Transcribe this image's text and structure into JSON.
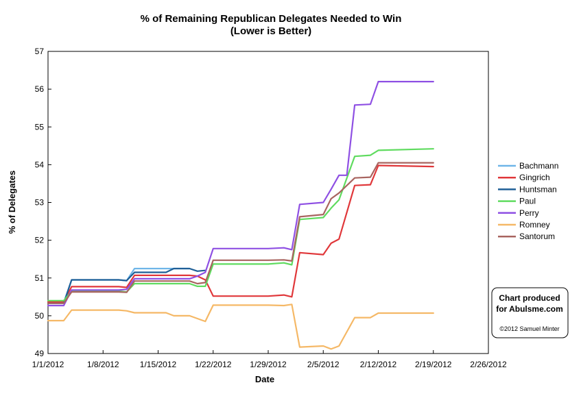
{
  "chart_data": {
    "type": "line",
    "title": "% of Remaining Republican Delegates Needed to Win",
    "subtitle": "(Lower is Better)",
    "xlabel": "Date",
    "ylabel": "% of Delegates",
    "xlim": [
      "1/1/2012",
      "2/26/2012"
    ],
    "ylim": [
      49,
      57
    ],
    "x_ticks": [
      "1/1/2012",
      "1/8/2012",
      "1/15/2012",
      "1/22/2012",
      "1/29/2012",
      "2/5/2012",
      "2/12/2012",
      "2/19/2012",
      "2/26/2012"
    ],
    "y_ticks": [
      49,
      50,
      51,
      52,
      53,
      54,
      55,
      56,
      57
    ],
    "grid": false,
    "legend_position": "right",
    "series": [
      {
        "name": "Bachmann",
        "color": "#6EB5E8",
        "points": [
          [
            "1/1/2012",
            50.35
          ],
          [
            "1/3/2012",
            50.35
          ],
          [
            "1/4/2012",
            50.95
          ],
          [
            "1/10/2012",
            50.95
          ],
          [
            "1/11/2012",
            50.93
          ],
          [
            "1/12/2012",
            51.25
          ],
          [
            "1/19/2012",
            51.25
          ]
        ]
      },
      {
        "name": "Gingrich",
        "color": "#E0373A",
        "points": [
          [
            "1/1/2012",
            50.37
          ],
          [
            "1/3/2012",
            50.37
          ],
          [
            "1/4/2012",
            50.77
          ],
          [
            "1/10/2012",
            50.77
          ],
          [
            "1/11/2012",
            50.75
          ],
          [
            "1/12/2012",
            51.07
          ],
          [
            "1/19/2012",
            51.07
          ],
          [
            "1/20/2012",
            51.05
          ],
          [
            "1/21/2012",
            50.95
          ],
          [
            "1/22/2012",
            50.52
          ],
          [
            "1/29/2012",
            50.52
          ],
          [
            "1/31/2012",
            50.55
          ],
          [
            "2/1/2012",
            50.5
          ],
          [
            "2/2/2012",
            51.67
          ],
          [
            "2/5/2012",
            51.62
          ],
          [
            "2/6/2012",
            51.92
          ],
          [
            "2/7/2012",
            52.03
          ],
          [
            "2/9/2012",
            53.45
          ],
          [
            "2/11/2012",
            53.47
          ],
          [
            "2/12/2012",
            53.98
          ],
          [
            "2/19/2012",
            53.95
          ]
        ]
      },
      {
        "name": "Huntsman",
        "color": "#1E5E96",
        "points": [
          [
            "1/1/2012",
            50.33
          ],
          [
            "1/3/2012",
            50.33
          ],
          [
            "1/4/2012",
            50.95
          ],
          [
            "1/10/2012",
            50.95
          ],
          [
            "1/11/2012",
            50.93
          ],
          [
            "1/12/2012",
            51.15
          ],
          [
            "1/16/2012",
            51.15
          ],
          [
            "1/17/2012",
            51.25
          ],
          [
            "1/19/2012",
            51.25
          ],
          [
            "1/20/2012",
            51.18
          ],
          [
            "1/21/2012",
            51.2
          ]
        ]
      },
      {
        "name": "Paul",
        "color": "#5FDB5F",
        "points": [
          [
            "1/1/2012",
            50.4
          ],
          [
            "1/3/2012",
            50.4
          ],
          [
            "1/4/2012",
            50.65
          ],
          [
            "1/10/2012",
            50.65
          ],
          [
            "1/11/2012",
            50.63
          ],
          [
            "1/12/2012",
            50.85
          ],
          [
            "1/19/2012",
            50.85
          ],
          [
            "1/20/2012",
            50.78
          ],
          [
            "1/21/2012",
            50.78
          ],
          [
            "1/22/2012",
            51.37
          ],
          [
            "1/29/2012",
            51.37
          ],
          [
            "1/31/2012",
            51.4
          ],
          [
            "2/1/2012",
            51.35
          ],
          [
            "2/2/2012",
            52.55
          ],
          [
            "2/5/2012",
            52.6
          ],
          [
            "2/6/2012",
            52.85
          ],
          [
            "2/7/2012",
            53.07
          ],
          [
            "2/9/2012",
            54.22
          ],
          [
            "2/11/2012",
            54.25
          ],
          [
            "2/12/2012",
            54.38
          ],
          [
            "2/19/2012",
            54.42
          ]
        ]
      },
      {
        "name": "Perry",
        "color": "#8E4FE3",
        "points": [
          [
            "1/1/2012",
            50.27
          ],
          [
            "1/3/2012",
            50.27
          ],
          [
            "1/4/2012",
            50.68
          ],
          [
            "1/10/2012",
            50.68
          ],
          [
            "1/11/2012",
            50.7
          ],
          [
            "1/12/2012",
            50.98
          ],
          [
            "1/19/2012",
            50.98
          ],
          [
            "1/20/2012",
            51.05
          ],
          [
            "1/21/2012",
            51.15
          ],
          [
            "1/22/2012",
            51.78
          ],
          [
            "1/29/2012",
            51.78
          ],
          [
            "1/31/2012",
            51.8
          ],
          [
            "2/1/2012",
            51.75
          ],
          [
            "2/2/2012",
            52.95
          ],
          [
            "2/5/2012",
            53.0
          ],
          [
            "2/6/2012",
            53.35
          ],
          [
            "2/7/2012",
            53.72
          ],
          [
            "2/8/2012",
            53.72
          ],
          [
            "2/9/2012",
            55.58
          ],
          [
            "2/11/2012",
            55.6
          ],
          [
            "2/12/2012",
            56.2
          ],
          [
            "2/19/2012",
            56.2
          ]
        ]
      },
      {
        "name": "Romney",
        "color": "#F5B866",
        "points": [
          [
            "1/1/2012",
            49.87
          ],
          [
            "1/3/2012",
            49.87
          ],
          [
            "1/4/2012",
            50.15
          ],
          [
            "1/10/2012",
            50.15
          ],
          [
            "1/11/2012",
            50.13
          ],
          [
            "1/12/2012",
            50.08
          ],
          [
            "1/16/2012",
            50.08
          ],
          [
            "1/17/2012",
            50.0
          ],
          [
            "1/19/2012",
            50.0
          ],
          [
            "1/21/2012",
            49.85
          ],
          [
            "1/22/2012",
            50.28
          ],
          [
            "1/29/2012",
            50.28
          ],
          [
            "1/31/2012",
            50.27
          ],
          [
            "2/1/2012",
            50.3
          ],
          [
            "2/2/2012",
            49.17
          ],
          [
            "2/5/2012",
            49.2
          ],
          [
            "2/6/2012",
            49.12
          ],
          [
            "2/7/2012",
            49.2
          ],
          [
            "2/9/2012",
            49.95
          ],
          [
            "2/11/2012",
            49.95
          ],
          [
            "2/12/2012",
            50.07
          ],
          [
            "2/19/2012",
            50.07
          ]
        ]
      },
      {
        "name": "Santorum",
        "color": "#A8645F",
        "points": [
          [
            "1/1/2012",
            50.33
          ],
          [
            "1/3/2012",
            50.33
          ],
          [
            "1/4/2012",
            50.63
          ],
          [
            "1/10/2012",
            50.63
          ],
          [
            "1/11/2012",
            50.62
          ],
          [
            "1/12/2012",
            50.92
          ],
          [
            "1/19/2012",
            50.92
          ],
          [
            "1/20/2012",
            50.85
          ],
          [
            "1/21/2012",
            50.88
          ],
          [
            "1/22/2012",
            51.47
          ],
          [
            "1/29/2012",
            51.47
          ],
          [
            "1/31/2012",
            51.48
          ],
          [
            "2/1/2012",
            51.45
          ],
          [
            "2/2/2012",
            52.62
          ],
          [
            "2/5/2012",
            52.68
          ],
          [
            "2/6/2012",
            53.1
          ],
          [
            "2/7/2012",
            53.25
          ],
          [
            "2/9/2012",
            53.65
          ],
          [
            "2/11/2012",
            53.67
          ],
          [
            "2/12/2012",
            54.05
          ],
          [
            "2/19/2012",
            54.05
          ]
        ]
      }
    ]
  },
  "credit": {
    "line1": "Chart produced",
    "line2": "for Abulsme.com",
    "line3": "©2012 Samuel Minter"
  }
}
